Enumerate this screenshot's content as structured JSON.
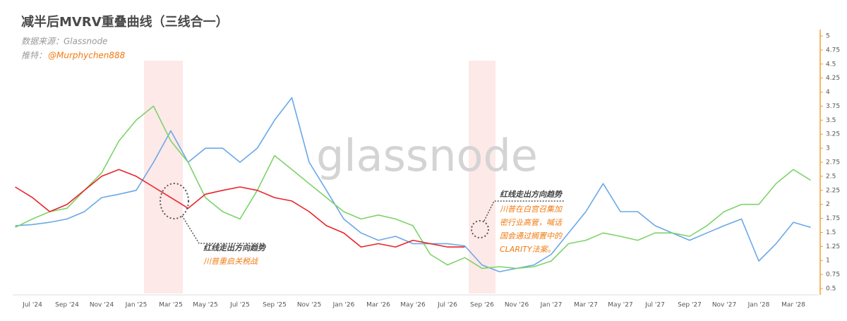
{
  "chart_data": {
    "type": "line",
    "title": "减半后MVRV重叠曲线（三线合一）",
    "source_label": "数据来源：Glassnode",
    "twitter_label": "推特：",
    "twitter_handle": "@Murphychen888",
    "watermark": "glassnode",
    "categories": [
      null,
      "Jul '24",
      null,
      "Sep '24",
      null,
      "Nov '24",
      null,
      "Jan '25",
      null,
      "Mar '25",
      null,
      "May '25",
      null,
      "Jul '25",
      null,
      "Sep '25",
      null,
      "Nov '25",
      null,
      "Jan '26",
      null,
      "Mar '26",
      null,
      "May '26",
      null,
      "Jul '26",
      null,
      "Sep '26",
      null,
      "Nov '26",
      null,
      "Jan '27",
      null,
      "Mar '27",
      null,
      "May '27",
      null,
      "Jul '27",
      null,
      "Sep '27",
      null,
      "Nov '27",
      null,
      "Jan '28",
      null,
      "Mar '28",
      null
    ],
    "series": [
      {
        "color": "#6aa8e8",
        "values": [
          1.62,
          1.64,
          1.68,
          1.74,
          1.87,
          2.12,
          2.18,
          2.25,
          2.75,
          3.31,
          2.75,
          3.0,
          3.0,
          2.75,
          3.0,
          3.5,
          3.9,
          2.75,
          2.25,
          1.74,
          1.49,
          1.36,
          1.43,
          1.3,
          1.3,
          1.3,
          1.26,
          0.92,
          0.8,
          0.86,
          0.92,
          1.11,
          1.49,
          1.87,
          2.37,
          1.87,
          1.87,
          1.62,
          1.49,
          1.36,
          1.49,
          1.62,
          1.74,
          0.99,
          1.3,
          1.68,
          1.59
        ]
      },
      {
        "color": "#7dd36a",
        "values": [
          1.59,
          1.74,
          1.87,
          1.93,
          2.25,
          2.56,
          3.13,
          3.5,
          3.75,
          3.13,
          2.75,
          2.12,
          1.87,
          1.74,
          2.25,
          2.87,
          2.62,
          2.37,
          2.12,
          1.87,
          1.74,
          1.81,
          1.74,
          1.62,
          1.11,
          0.92,
          1.05,
          0.86,
          0.89,
          0.86,
          0.89,
          0.99,
          1.3,
          1.36,
          1.49,
          1.43,
          1.36,
          1.49,
          1.49,
          1.43,
          1.62,
          1.87,
          2.0,
          2.0,
          2.37,
          2.62,
          2.43
        ]
      },
      {
        "color": "#e8242b",
        "values": [
          2.31,
          2.12,
          1.87,
          2.0,
          2.25,
          2.5,
          2.62,
          2.5,
          2.31,
          2.12,
          1.93,
          2.18,
          2.25,
          2.31,
          2.25,
          2.12,
          2.06,
          1.87,
          1.62,
          1.49,
          1.24,
          1.3,
          1.24,
          1.36,
          1.3,
          1.24,
          1.24,
          null,
          null,
          null,
          null,
          null,
          null,
          null,
          null,
          null,
          null,
          null,
          null,
          null,
          null,
          null,
          null,
          null,
          null,
          null,
          null
        ]
      }
    ],
    "ylim": [
      0.5,
      5
    ],
    "yticks": [
      0.5,
      0.75,
      1,
      1.25,
      1.5,
      1.75,
      2,
      2.25,
      2.5,
      2.75,
      3,
      3.25,
      3.5,
      3.75,
      4,
      4.25,
      4.5,
      4.75,
      5
    ],
    "annotations": [
      {
        "title": "红线走出方向趋势",
        "lines": [
          "川普重启关税战"
        ]
      },
      {
        "title": "红线走出方向趋势",
        "lines": [
          "川普在白宫召集加",
          "密行业高管，喊话",
          "国会通过搁置中的",
          "CLARITY法案。"
        ]
      }
    ]
  }
}
